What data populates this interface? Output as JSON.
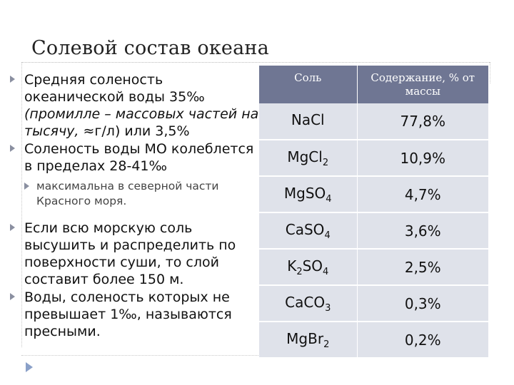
{
  "slide": {
    "title": "Солевой состав океана"
  },
  "bullets": {
    "b1_line1": "Средняя соленость океанической воды 35‰",
    "b1_italic": "(промилле – массовых частей на тысячу,",
    "b1_tail": " ≈г/л) или 3,5%",
    "b2": "Соленость воды МО колеблется в пределах 28-41‰",
    "b2_sub": "максимальна в северной части Красного моря.",
    "b3": "Если всю морскую соль высушить и распределить по поверхности суши, то слой составит более 150 м.",
    "b4": "Воды, соленость которых не превышает 1‰, называются пресными."
  },
  "table": {
    "headers": [
      "Соль",
      "Содержание, % от массы"
    ],
    "rows": [
      {
        "formula": {
          "a": "NaCl",
          "sub": "",
          "b": "",
          "sub2": ""
        },
        "percent": "77,8%"
      },
      {
        "formula": {
          "a": "MgCl",
          "sub": "2",
          "b": "",
          "sub2": ""
        },
        "percent": "10,9%"
      },
      {
        "formula": {
          "a": "MgSO",
          "sub": "4",
          "b": "",
          "sub2": ""
        },
        "percent": "4,7%"
      },
      {
        "formula": {
          "a": "CaSO",
          "sub": "4",
          "b": "",
          "sub2": ""
        },
        "percent": "3,6%"
      },
      {
        "formula": {
          "a": "K",
          "sub": "2",
          "b": "SO",
          "sub2": "4"
        },
        "percent": "2,5%"
      },
      {
        "formula": {
          "a": "CaCO",
          "sub": "3",
          "b": "",
          "sub2": ""
        },
        "percent": "0,3%"
      },
      {
        "formula": {
          "a": "MgBr",
          "sub": "2",
          "b": "",
          "sub2": ""
        },
        "percent": "0,2%"
      }
    ]
  },
  "colors": {
    "header_bg": "#6f7693",
    "cell_bg": "#dfe2ea",
    "bullet_marker": "#8a8fa0",
    "nav_arrow": "#8aa0c8"
  },
  "icons": {
    "bullet": "triangle-right-icon",
    "nav": "next-slide-arrow-icon"
  }
}
